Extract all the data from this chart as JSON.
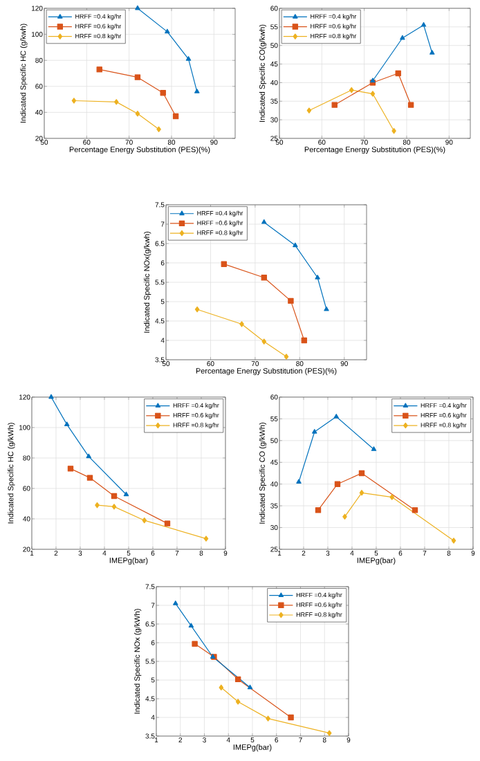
{
  "chart_data": [
    {
      "type": "line",
      "xlabel": "Percentage Energy Substitution (PES)(%)",
      "ylabel": "Indicated Specific HC (g/kwh)",
      "xlim": [
        50,
        95
      ],
      "xticks": [
        50,
        60,
        70,
        80,
        90
      ],
      "ylim": [
        20,
        120
      ],
      "yticks": [
        20,
        40,
        60,
        80,
        100,
        120
      ],
      "grid": true,
      "legend": "top left",
      "series": [
        {
          "name": "HRFF =0.4 kg/hr",
          "color": "#0072bd",
          "marker": "triangle",
          "x": [
            72,
            79,
            84,
            86
          ],
          "values": [
            120,
            102,
            81,
            56
          ]
        },
        {
          "name": "HRFF =0.6 kg/hr",
          "color": "#d95319",
          "marker": "square",
          "x": [
            63,
            72,
            78,
            81
          ],
          "values": [
            73,
            67,
            55,
            37
          ]
        },
        {
          "name": "HRFF =0.8 kg/hr",
          "color": "#edb120",
          "marker": "diamond",
          "x": [
            57,
            67,
            72,
            77
          ],
          "values": [
            49,
            48,
            39,
            27
          ]
        }
      ]
    },
    {
      "type": "line",
      "xlabel": "Percentage Energy Substitution (PES)(%)",
      "ylabel": "Indicated Specific CO(g/kwh)",
      "xlim": [
        50,
        95
      ],
      "xticks": [
        50,
        60,
        70,
        80,
        90
      ],
      "ylim": [
        25,
        60
      ],
      "yticks": [
        25,
        30,
        35,
        40,
        45,
        50,
        55,
        60
      ],
      "grid": true,
      "legend": "top left",
      "series": [
        {
          "name": "HRFF =0.4 kg/hr",
          "color": "#0072bd",
          "marker": "triangle",
          "x": [
            72,
            79,
            84,
            86
          ],
          "values": [
            40.5,
            52,
            55.5,
            48
          ]
        },
        {
          "name": "HRFF =0.6 kg/hr",
          "color": "#d95319",
          "marker": "square",
          "x": [
            63,
            72,
            78,
            81
          ],
          "values": [
            34,
            40,
            42.5,
            34
          ]
        },
        {
          "name": "HRFF =0.8 kg/hr",
          "color": "#edb120",
          "marker": "diamond",
          "x": [
            57,
            67,
            72,
            77
          ],
          "values": [
            32.5,
            38,
            37,
            27
          ]
        }
      ]
    },
    {
      "type": "line",
      "xlabel": "Percentage Energy Substitution (PES)(%)",
      "ylabel": "Indicated Specific NOx(g/kwh)",
      "xlim": [
        50,
        95
      ],
      "xticks": [
        50,
        60,
        70,
        80,
        90
      ],
      "ylim": [
        3.5,
        7.5
      ],
      "yticks": [
        3.5,
        4,
        4.5,
        5,
        5.5,
        6,
        6.5,
        7,
        7.5
      ],
      "grid": true,
      "legend": "top left",
      "series": [
        {
          "name": "HRFF =0.4 kg/hr",
          "color": "#0072bd",
          "marker": "triangle",
          "x": [
            72,
            79,
            84,
            86
          ],
          "values": [
            7.05,
            6.45,
            5.62,
            4.8
          ]
        },
        {
          "name": "HRFF =0.6 kg/hr",
          "color": "#d95319",
          "marker": "square",
          "x": [
            63,
            72,
            78,
            81
          ],
          "values": [
            5.97,
            5.62,
            5.02,
            4.0
          ]
        },
        {
          "name": "HRFF =0.8 kg/hr",
          "color": "#edb120",
          "marker": "diamond",
          "x": [
            57,
            67,
            72,
            77
          ],
          "values": [
            4.8,
            4.42,
            3.97,
            3.58
          ]
        }
      ]
    },
    {
      "type": "line",
      "xlabel": "IMEPg(bar)",
      "ylabel": "Indicated Specific HC (g/kWh)",
      "xlim": [
        1,
        9
      ],
      "xticks": [
        1,
        2,
        3,
        4,
        5,
        6,
        7,
        8,
        9
      ],
      "ylim": [
        20,
        120
      ],
      "yticks": [
        20,
        40,
        60,
        80,
        100,
        120
      ],
      "grid": true,
      "legend": "top right",
      "series": [
        {
          "name": "HRFF =0.4 kg/hr",
          "color": "#0072bd",
          "marker": "triangle",
          "x": [
            1.8,
            2.45,
            3.35,
            4.9
          ],
          "values": [
            120,
            102,
            81,
            56
          ]
        },
        {
          "name": "HRFF =0.6 kg/hr",
          "color": "#d95319",
          "marker": "square",
          "x": [
            2.6,
            3.4,
            4.4,
            6.6
          ],
          "values": [
            73,
            67,
            55,
            37
          ]
        },
        {
          "name": "HRFF =0.8 kg/hr",
          "color": "#edb120",
          "marker": "diamond",
          "x": [
            3.7,
            4.4,
            5.65,
            8.2
          ],
          "values": [
            49,
            48,
            39,
            27
          ]
        }
      ]
    },
    {
      "type": "line",
      "xlabel": "IMEPg(bar)",
      "ylabel": "Indicated Specific CO (g/kWh)",
      "xlim": [
        1,
        9
      ],
      "xticks": [
        1,
        2,
        3,
        4,
        5,
        6,
        7,
        8,
        9
      ],
      "ylim": [
        25,
        60
      ],
      "yticks": [
        25,
        30,
        35,
        40,
        45,
        50,
        55,
        60
      ],
      "grid": true,
      "legend": "top right",
      "series": [
        {
          "name": "HRFF =0.4 kg/hr",
          "color": "#0072bd",
          "marker": "triangle",
          "x": [
            1.8,
            2.45,
            3.35,
            4.9
          ],
          "values": [
            40.5,
            52,
            55.5,
            48
          ]
        },
        {
          "name": "HRFF =0.6 kg/hr",
          "color": "#d95319",
          "marker": "square",
          "x": [
            2.6,
            3.4,
            4.4,
            6.6
          ],
          "values": [
            34,
            40,
            42.5,
            34
          ]
        },
        {
          "name": "HRFF =0.8 kg/hr",
          "color": "#edb120",
          "marker": "diamond",
          "x": [
            3.7,
            4.4,
            5.65,
            8.2
          ],
          "values": [
            32.5,
            38,
            37,
            27
          ]
        }
      ]
    },
    {
      "type": "line",
      "xlabel": "IMEPg(bar)",
      "ylabel": "Indicated Specific NOx (g/kWh)",
      "xlim": [
        1,
        9
      ],
      "xticks": [
        1,
        2,
        3,
        4,
        5,
        6,
        7,
        8,
        9
      ],
      "ylim": [
        3.5,
        7.5
      ],
      "yticks": [
        3.5,
        4,
        4.5,
        5,
        5.5,
        6,
        6.5,
        7,
        7.5
      ],
      "grid": true,
      "legend": "top right",
      "series": [
        {
          "name": "HRFF =0.4 kg/hr",
          "color": "#0072bd",
          "marker": "triangle",
          "x": [
            1.8,
            2.45,
            3.35,
            4.9
          ],
          "values": [
            7.05,
            6.45,
            5.62,
            4.8
          ]
        },
        {
          "name": "HRFF =0.6 kg/hr",
          "color": "#d95319",
          "marker": "square",
          "x": [
            2.6,
            3.4,
            4.4,
            6.6
          ],
          "values": [
            5.97,
            5.62,
            5.02,
            4.0
          ]
        },
        {
          "name": "HRFF =0.8 kg/hr",
          "color": "#edb120",
          "marker": "diamond",
          "x": [
            3.7,
            4.4,
            5.65,
            8.2
          ],
          "values": [
            4.8,
            4.42,
            3.97,
            3.58
          ]
        }
      ]
    }
  ]
}
